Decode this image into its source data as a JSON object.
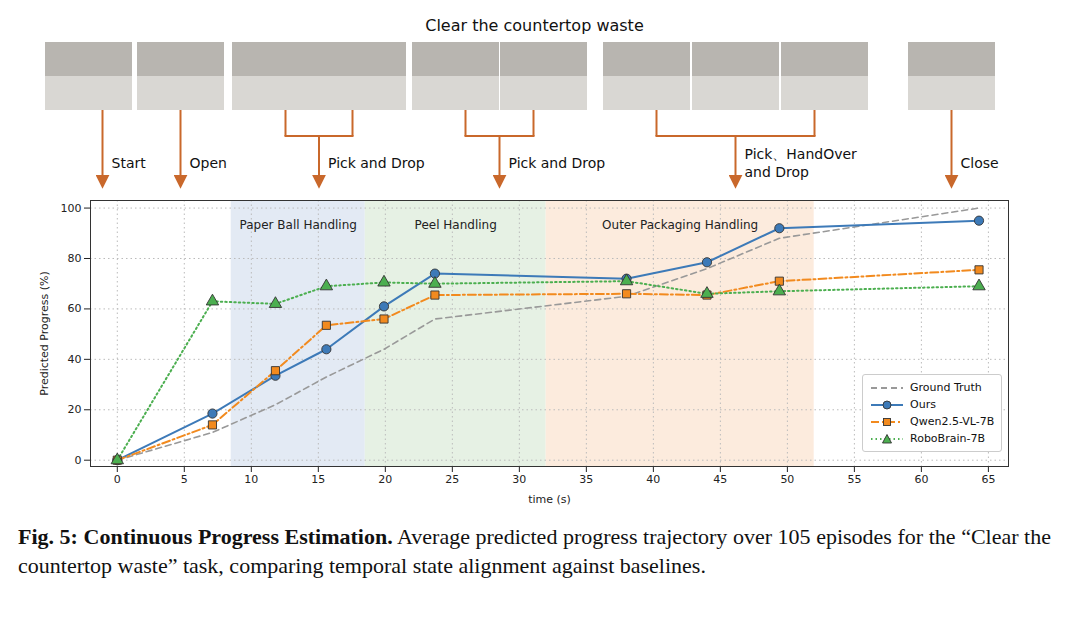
{
  "figure": {
    "title": "Clear the countertop waste",
    "steps": [
      "Start",
      "Open",
      "Pick and Drop",
      "Pick and Drop",
      "Pick、HandOver and Drop",
      "Close"
    ],
    "caption_label": "Fig. 5: Continuous Progress Estimation.",
    "caption": "Average predicted progress trajectory over 105 episodes for the “Clear the countertop waste” task, comparing temporal state alignment against baselines."
  },
  "chart_data": {
    "type": "line",
    "x_label": "time (s)",
    "y_label": "Predicted Progress (%)",
    "x": [
      0,
      7.1,
      11.8,
      15.6,
      19.9,
      23.7,
      38,
      44,
      49.4,
      64.3
    ],
    "series": [
      {
        "name": "Ground Truth",
        "color": "#999999",
        "line_style": "dashed",
        "marker": "none",
        "values": [
          0,
          11,
          22,
          33,
          44,
          56,
          65,
          76,
          88,
          100
        ]
      },
      {
        "name": "Ours",
        "color": "#3d7ab8",
        "line_style": "solid",
        "marker": "circle",
        "values": [
          0,
          18.5,
          33.5,
          44,
          61,
          74,
          72,
          78.5,
          92,
          95
        ]
      },
      {
        "name": "Qwen2.5-VL-7B",
        "color": "#f28a1e",
        "line_style": "dashdot",
        "marker": "square",
        "values": [
          0,
          14,
          35.5,
          53.5,
          56,
          65.5,
          66,
          65.5,
          71,
          75.5
        ]
      },
      {
        "name": "RoboBrain-7B",
        "color": "#4caf50",
        "line_style": "dotted",
        "marker": "triangle",
        "values": [
          0,
          63,
          62,
          69,
          70.5,
          70,
          71,
          66,
          67,
          69
        ]
      }
    ],
    "regions": [
      {
        "label": "Paper Ball Handling",
        "x0": 8.5,
        "x1": 18.5,
        "color": "#e3eaf4"
      },
      {
        "label": "Peel Handling",
        "x0": 18.5,
        "x1": 32,
        "color": "#e6f1e4"
      },
      {
        "label": "Outer Packaging Handling",
        "x0": 32,
        "x1": 52,
        "color": "#fcebdd"
      }
    ],
    "xlim": [
      -2,
      66.5
    ],
    "xticks": [
      0,
      5,
      10,
      15,
      20,
      25,
      30,
      35,
      40,
      45,
      50,
      55,
      60,
      65
    ],
    "ylim": [
      -2.5,
      103
    ],
    "yticks": [
      0,
      20,
      40,
      60,
      80,
      100
    ],
    "grid": true,
    "legend": "lower right"
  }
}
